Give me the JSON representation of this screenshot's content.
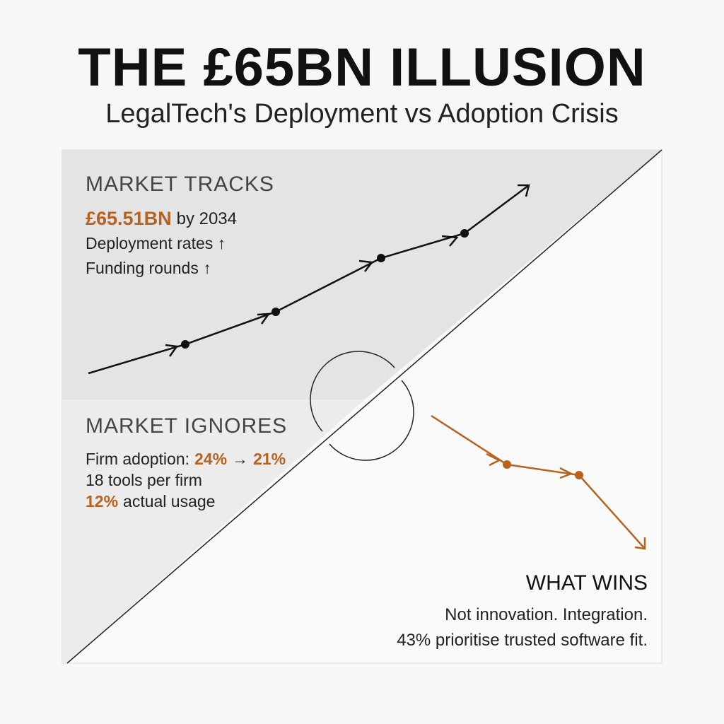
{
  "header": {
    "title": "THE £65BN ILLUSION",
    "subtitle": "LegalTech's Deployment vs Adoption Crisis"
  },
  "tracks": {
    "heading": "MARKET TRACKS",
    "lines": [
      [
        "£65.51BN",
        "by 2034"
      ],
      [
        "Deployment rates ↑"
      ],
      [
        "Funding rounds ↑"
      ]
    ]
  },
  "ignores": {
    "heading": "MARKET IGNORES",
    "lines": [
      [
        "Firm adoption:",
        "24%",
        "→",
        "21%"
      ],
      [
        "18 tools per firm"
      ],
      [
        "12%",
        "actual usage"
      ]
    ]
  },
  "wins": {
    "heading": "WHAT WINS",
    "lines": [
      "Not innovation. Integration.",
      "43% prioritise trusted software fit."
    ]
  }
}
